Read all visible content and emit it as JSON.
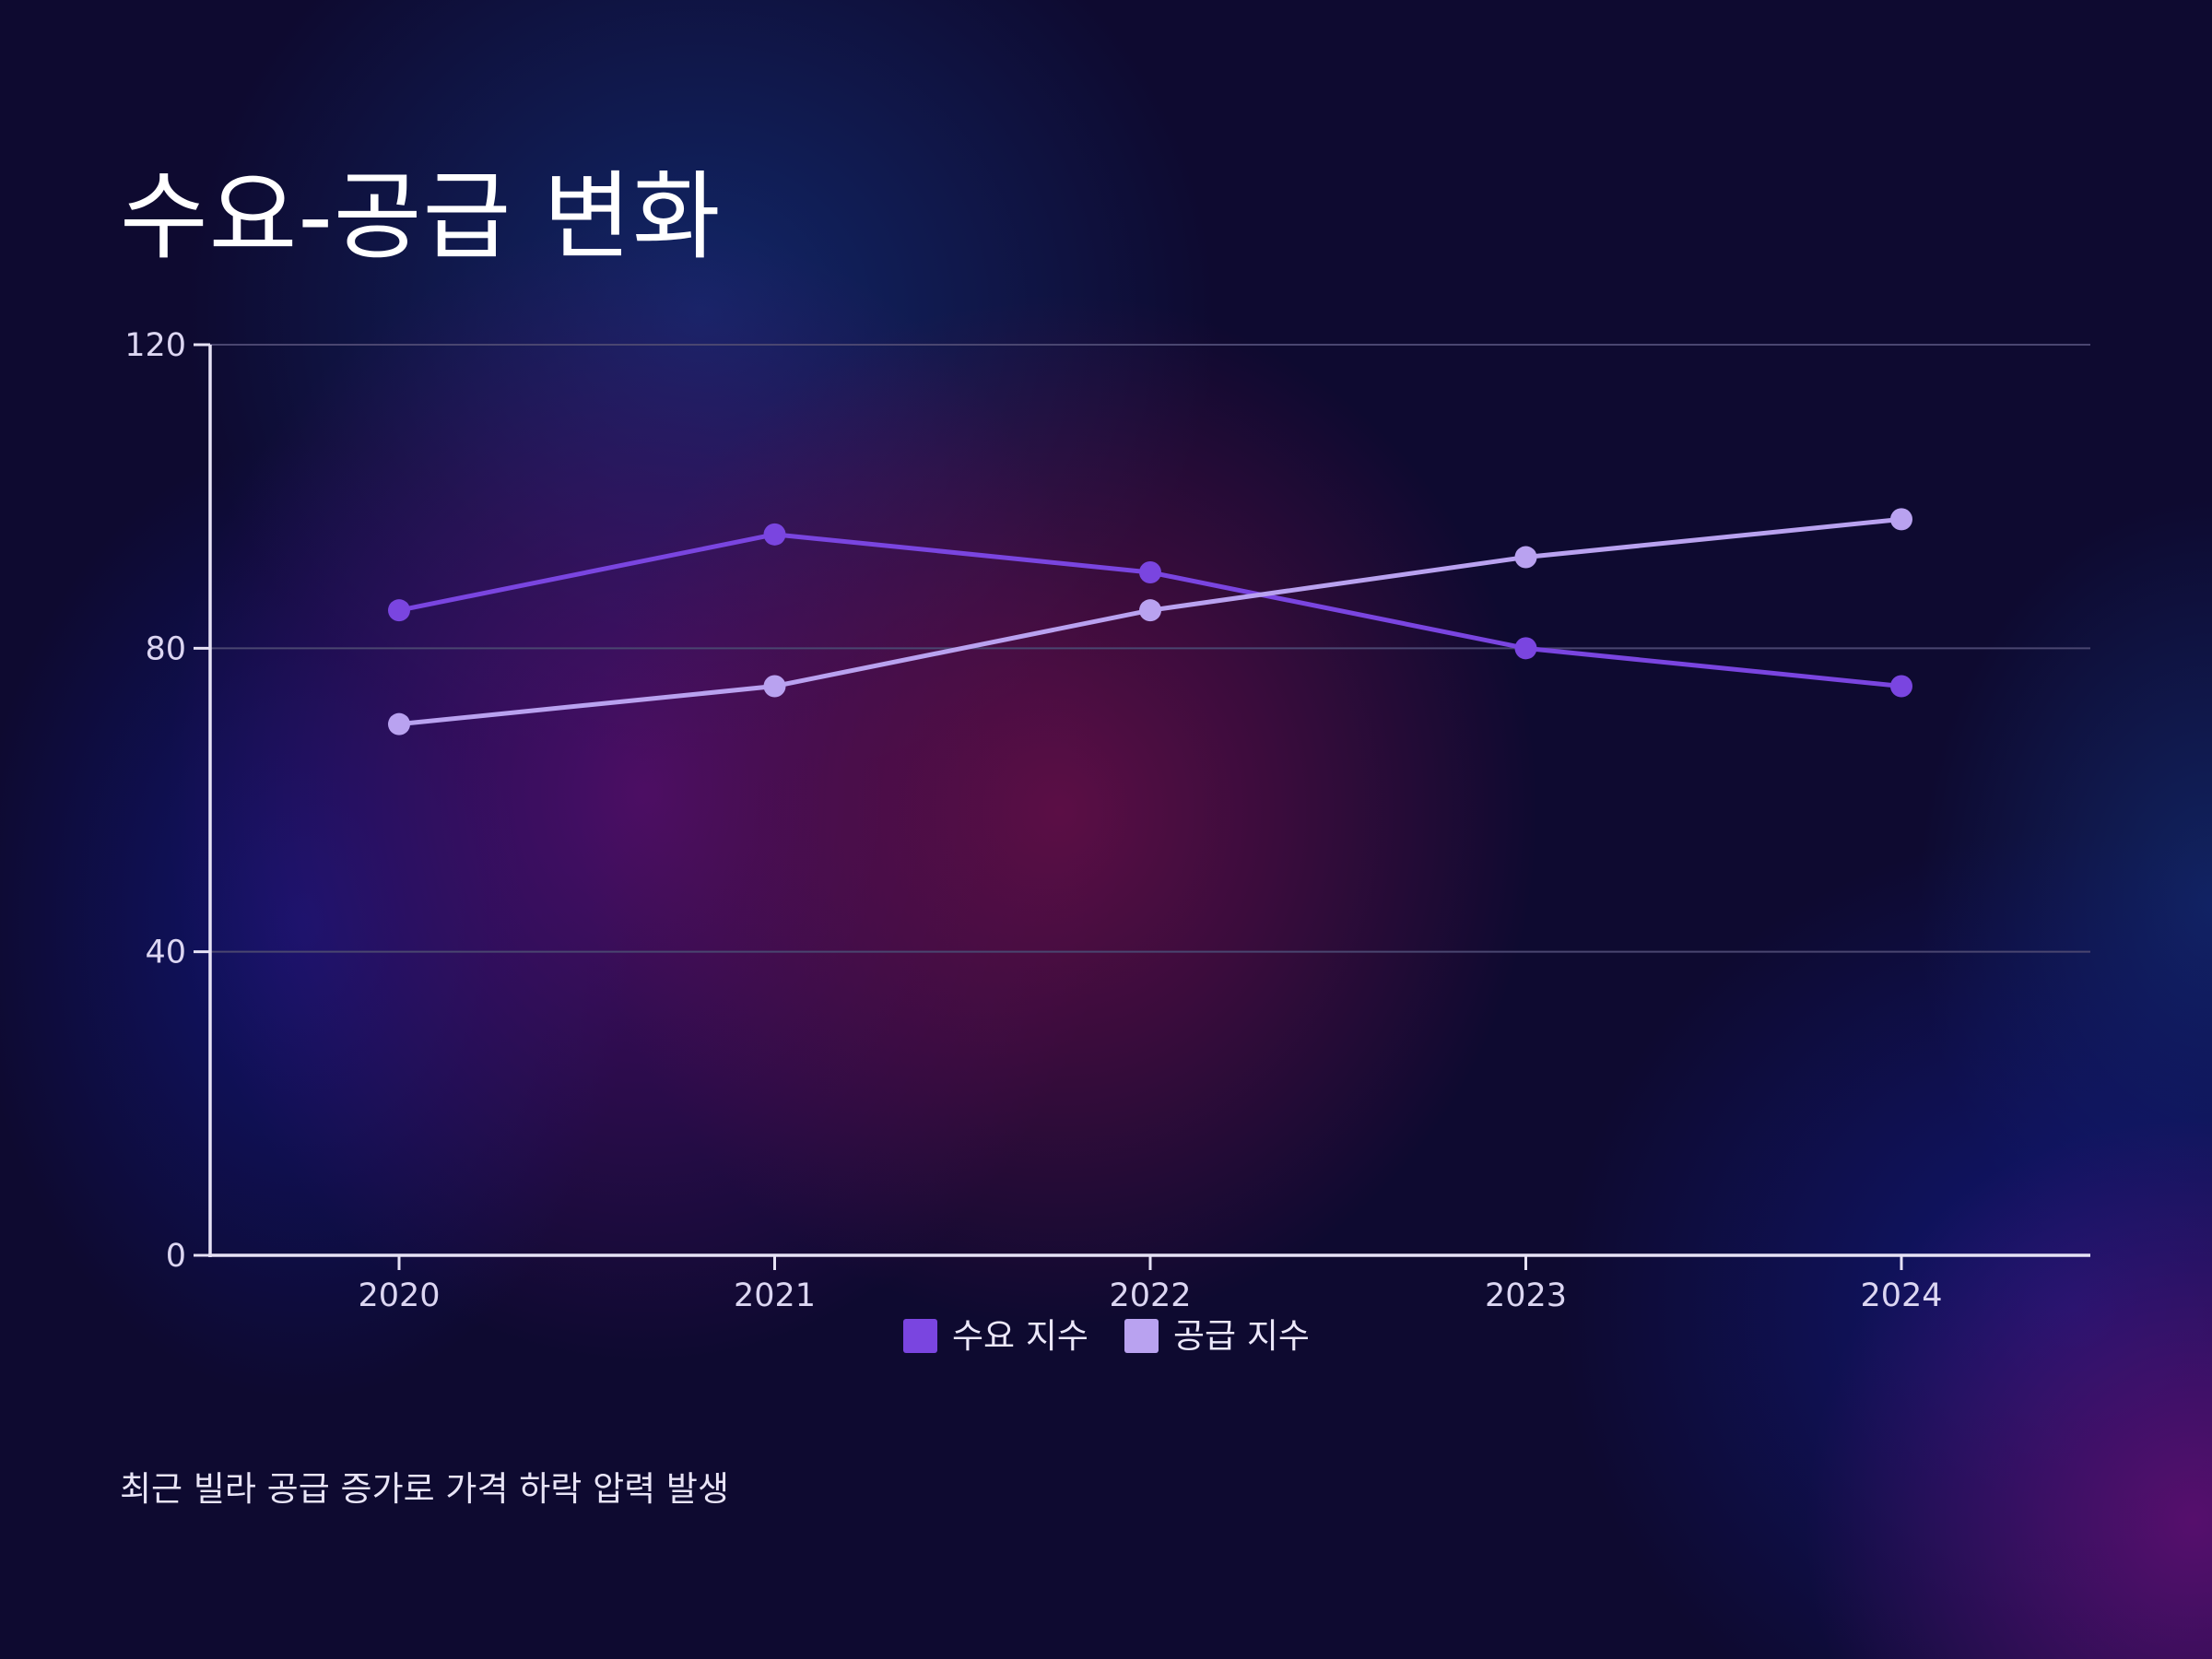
{
  "title": "수요-공급 변화",
  "footnote": "최근 빌라 공급 증가로 가격 하락 압력 발생",
  "colors": {
    "demand": "#7a45e0",
    "supply": "#b9a2f0",
    "axis": "#e6e2f5",
    "grid": "#4a4670",
    "text": "#dcd6f2"
  },
  "chart_data": {
    "type": "line",
    "categories": [
      "2020",
      "2021",
      "2022",
      "2023",
      "2024"
    ],
    "series": [
      {
        "name": "수요 지수",
        "values": [
          85,
          95,
          90,
          80,
          75
        ],
        "color": "#7a45e0"
      },
      {
        "name": "공급 지수",
        "values": [
          70,
          75,
          85,
          92,
          97
        ],
        "color": "#b9a2f0"
      }
    ],
    "y_ticks": [
      0,
      40,
      80,
      120
    ],
    "ylim": [
      0,
      120
    ],
    "xlabel": "",
    "ylabel": "",
    "grid": true,
    "legend": "bottom-center"
  }
}
